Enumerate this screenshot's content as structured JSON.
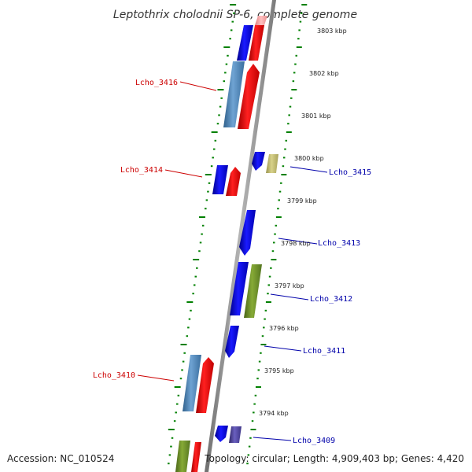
{
  "title": "Leptothrix cholodnii SP-6, complete genome",
  "footer": {
    "accession": "Accession: NC_010524",
    "summary": "Topology: circular; Length: 4,909,403 bp; Genes: 4,420"
  },
  "colors": {
    "backbone": "#8c8c8c",
    "tick": "#008000",
    "forward_label": "#cc0000",
    "reverse_label": "#0000aa",
    "blue": "#0000ee",
    "red": "#ee0000",
    "steelblue": "#4682b4",
    "olive": "#6b8e23",
    "khaki": "#bdb76b",
    "darkslate": "#483d8b",
    "pink": "#f4a6a6"
  },
  "kbp_labels": [
    "3803 kbp",
    "3802 kbp",
    "3801 kbp",
    "3800 kbp",
    "3799 kbp",
    "3798 kbp",
    "3797 kbp",
    "3796 kbp",
    "3795 kbp",
    "3794 kbp"
  ],
  "gene_labels": {
    "forward": [
      "Lcho_3416",
      "Lcho_3414",
      "Lcho_3410"
    ],
    "reverse": [
      "Lcho_3415",
      "Lcho_3413",
      "Lcho_3412",
      "Lcho_3411",
      "Lcho_3409"
    ]
  }
}
